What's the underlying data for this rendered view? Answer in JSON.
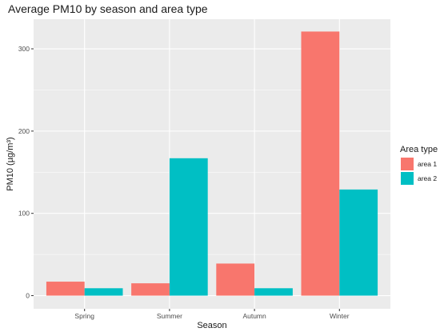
{
  "chart_data": {
    "type": "bar",
    "title": "Average PM10 by season and area type",
    "xlabel": "Season",
    "ylabel": "PM10 (µg/m³)",
    "categories": [
      "Spring",
      "Summer",
      "Autumn",
      "Winter"
    ],
    "series": [
      {
        "name": "area 1",
        "values": [
          17,
          15,
          39,
          321
        ],
        "color": "#F8766D"
      },
      {
        "name": "area 2",
        "values": [
          9,
          167,
          9,
          129
        ],
        "color": "#00BFC4"
      }
    ],
    "ylim": [
      -16,
      336
    ],
    "yticks": [
      0,
      100,
      200,
      300
    ],
    "grid": true,
    "legend": {
      "title": "Area type",
      "position": "right"
    },
    "panel_background": "#EBEBEB",
    "grid_color": "#FFFFFF"
  }
}
